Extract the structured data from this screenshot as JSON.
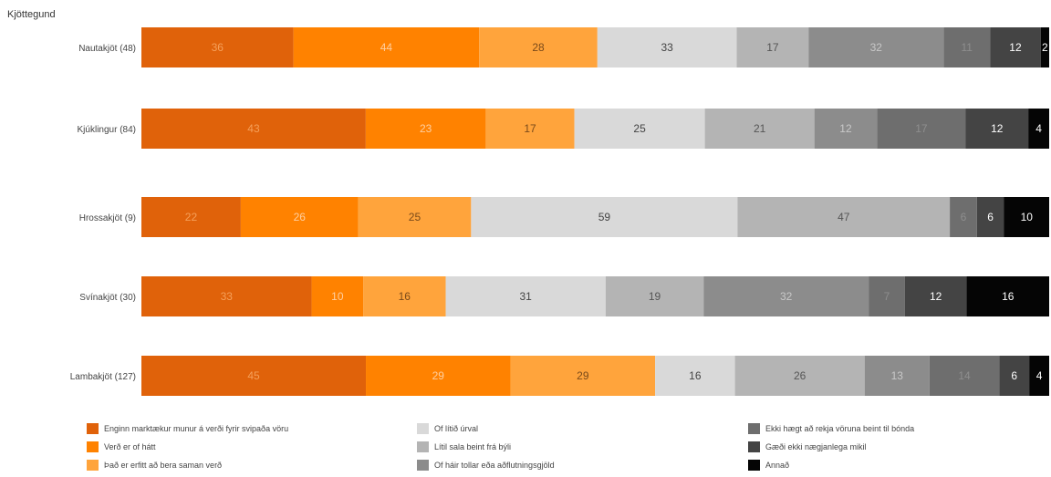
{
  "chart_data": {
    "type": "bar",
    "orientation": "horizontal",
    "stacked": true,
    "title": "Kjöttegund",
    "categories": [
      "Nautakjöt (48)",
      "Kjúklingur (84)",
      "Hrossakjöt (9)",
      "Svínakjöt (30)",
      "Lambakjöt (127)"
    ],
    "series": [
      {
        "name": "Enginn marktækur munur á verði fyrir svipaða vöru",
        "color": "#E0620A",
        "label_color": "#F5A05A",
        "values": [
          36,
          43,
          22,
          33,
          45
        ]
      },
      {
        "name": "Verð er of hátt",
        "color": "#FF8200",
        "label_color": "#FFCFA0",
        "values": [
          44,
          23,
          26,
          10,
          29
        ]
      },
      {
        "name": "Það er erfitt að bera saman verð",
        "color": "#FFA43C",
        "label_color": "#7A4A1A",
        "values": [
          28,
          17,
          25,
          16,
          29
        ]
      },
      {
        "name": "Of lítið úrval",
        "color": "#D9D9D9",
        "label_color": "#444444",
        "values": [
          33,
          25,
          59,
          31,
          16
        ]
      },
      {
        "name": "Lítil sala beint frá býli",
        "color": "#B4B4B4",
        "label_color": "#555555",
        "values": [
          17,
          21,
          47,
          19,
          26
        ]
      },
      {
        "name": "Of háir tollar eða aðflutningsgjöld",
        "color": "#8C8C8C",
        "label_color": "#C8C8C8",
        "values": [
          32,
          12,
          0,
          32,
          13
        ]
      },
      {
        "name": "Ekki hægt að rekja vöruna beint til bónda",
        "color": "#6E6E6E",
        "label_color": "#8E8E8E",
        "values": [
          11,
          17,
          6,
          7,
          14
        ]
      },
      {
        "name": "Gæði ekki nægjanlega mikil",
        "color": "#444444",
        "label_color": "#FFFFFF",
        "values": [
          12,
          12,
          6,
          12,
          6
        ]
      },
      {
        "name": "Annað",
        "color": "#050505",
        "label_color": "#FFFFFF",
        "values": [
          2,
          4,
          10,
          16,
          4
        ]
      }
    ],
    "legend_position": "bottom",
    "grid": false
  }
}
